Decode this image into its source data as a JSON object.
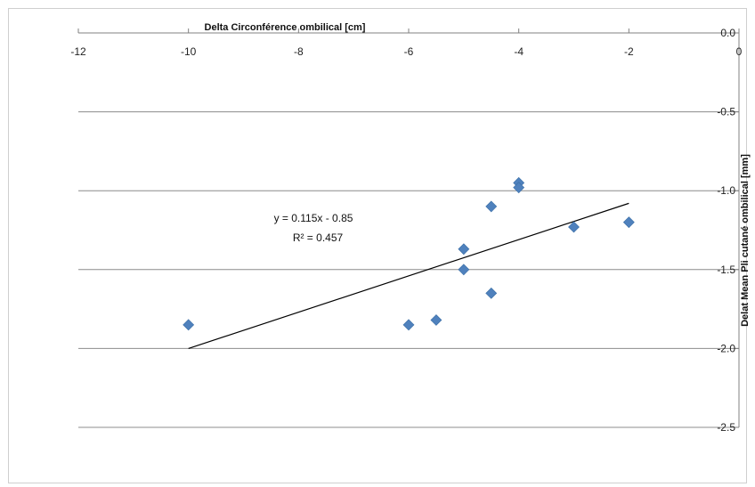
{
  "chart_data": {
    "type": "scatter",
    "xlabel": "Delta Circonférence ombilical  [cm]",
    "ylabel": "Delat Mean Pli cutané ombilical [mm]",
    "xlim": [
      -12,
      0
    ],
    "ylim": [
      -2.5,
      0.0
    ],
    "x_ticks": [
      "-12",
      "-10",
      "-8",
      "-6",
      "-4",
      "-2",
      "0"
    ],
    "y_ticks": [
      "0.0",
      "-0.5",
      "-1.0",
      "-1.5",
      "-2.0",
      "-2.5"
    ],
    "grid": "horizontal",
    "series": [
      {
        "x": [
          -10,
          -6,
          -5.5,
          -5,
          -5,
          -4.5,
          -4.5,
          -4,
          -4,
          -3,
          -2
        ],
        "y": [
          -1.85,
          -1.85,
          -1.82,
          -1.37,
          -1.5,
          -1.1,
          -1.65,
          -0.95,
          -0.98,
          -1.23,
          -1.2
        ],
        "color": "#4f81bd",
        "marker": "diamond"
      }
    ],
    "trendline": {
      "slope": 0.115,
      "intercept": -0.85,
      "x_range": [
        -10,
        -2
      ],
      "color": "#000000",
      "equation_text": "y = 0.115x - 0.85",
      "r2_text": "R² = 0.457"
    }
  }
}
